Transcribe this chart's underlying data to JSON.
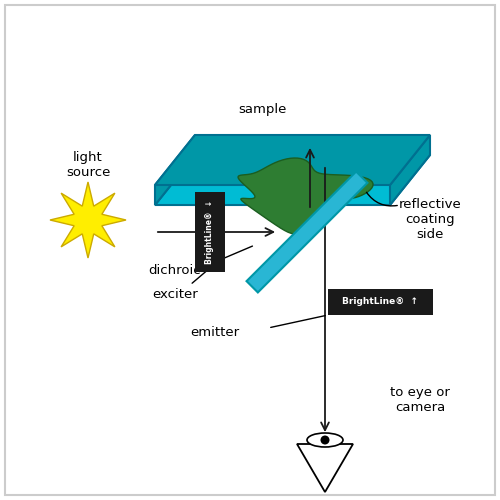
{
  "background_color": "#ffffff",
  "border_color": "#cccccc",
  "labels": {
    "light_source": "light\nsource",
    "sample": "sample",
    "to_eye": "to eye or\ncamera",
    "exciter": "exciter",
    "dichroic": "dichroic",
    "emitter": "emitter",
    "reflective": "reflective\ncoating\nside"
  },
  "brightline_box_color": "#1a1a1a",
  "brightline_text_color": "#ffffff",
  "dichroic_color": "#29b6d4",
  "sample_platform_top_color": "#00bcd4",
  "sample_platform_side_color": "#0097a7",
  "sample_blob_color": "#2e7d32",
  "sample_blob_edge_color": "#1b5e20",
  "star_color": "#ffee00",
  "star_edge_color": "#ccaa00",
  "arrow_color": "#1a1a1a"
}
